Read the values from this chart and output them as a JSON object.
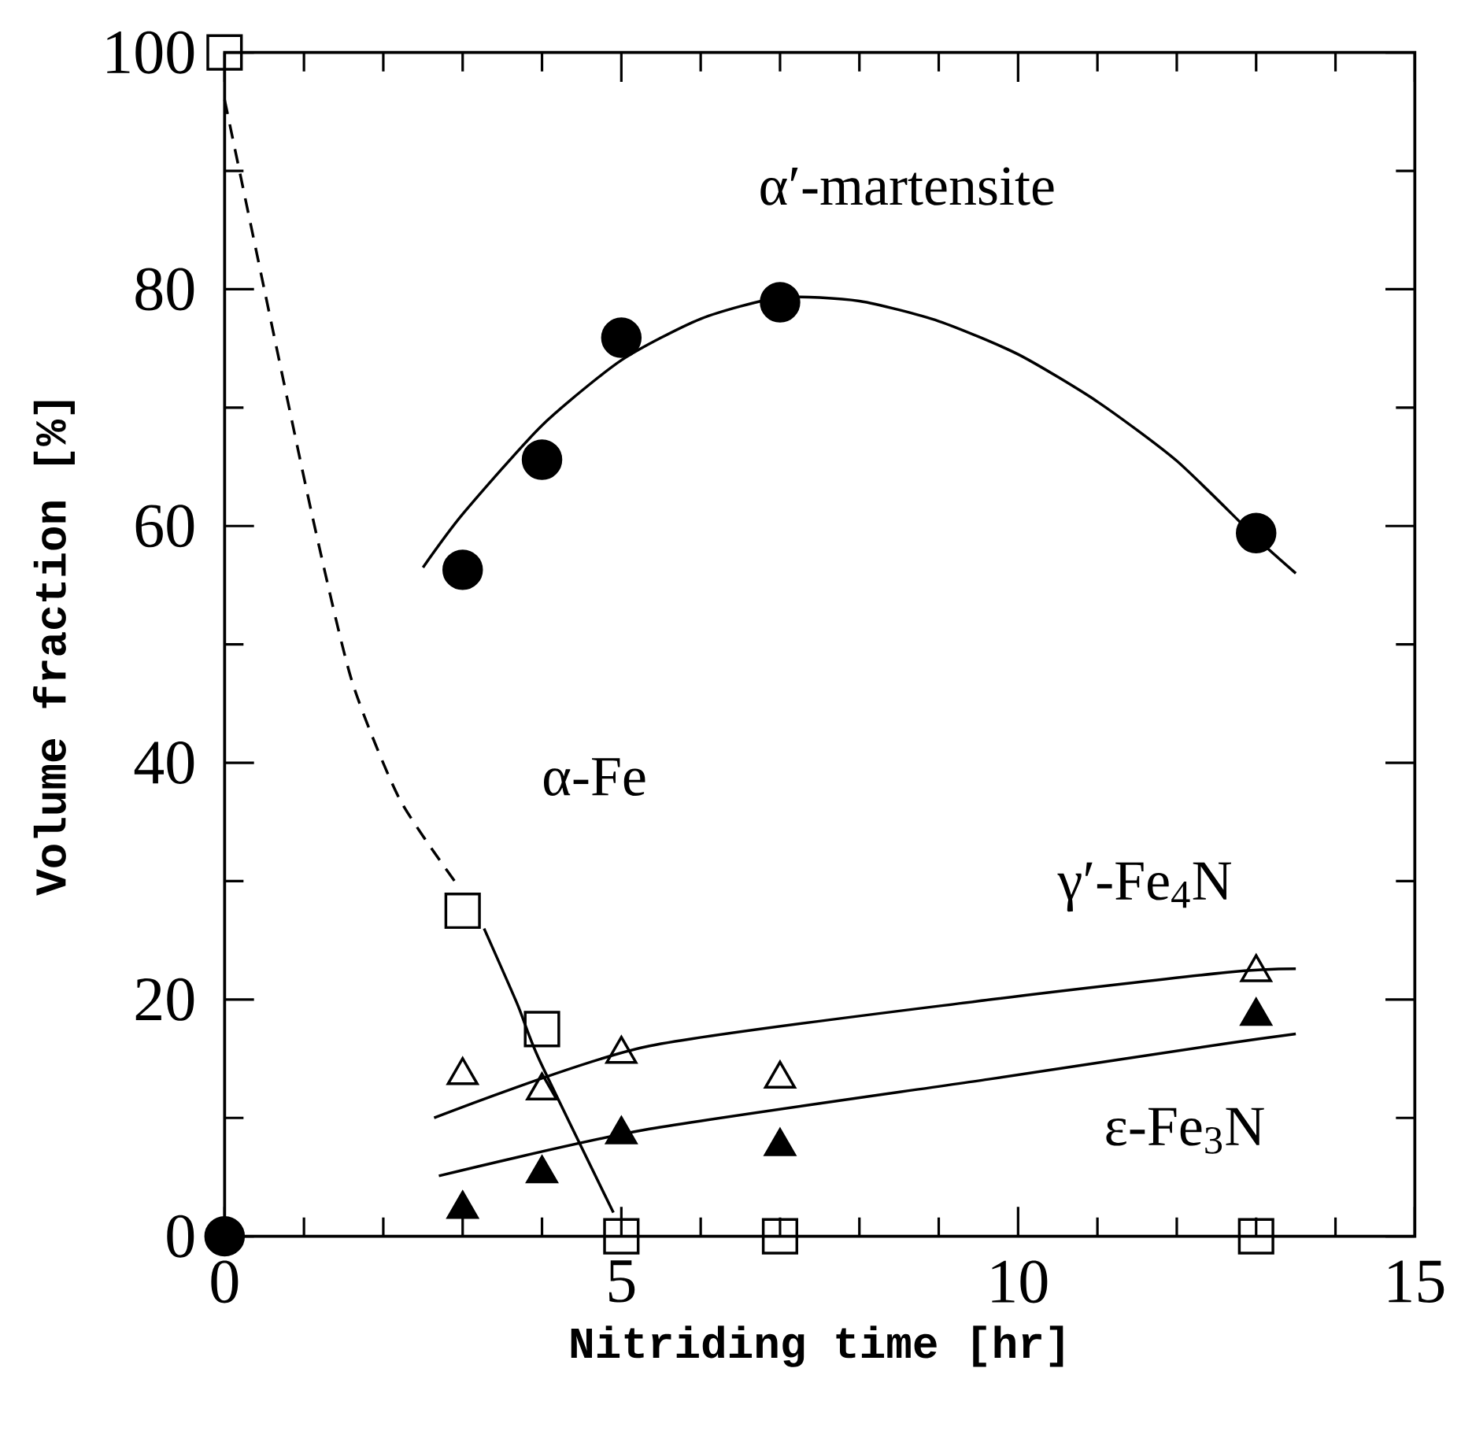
{
  "chart_data": {
    "type": "scatter",
    "xlabel": "Nitriding time [hr]",
    "ylabel": "Volume fraction [%]",
    "xlim": [
      0,
      15
    ],
    "ylim": [
      0,
      100
    ],
    "xticks": [
      0,
      5,
      10,
      15
    ],
    "yticks": [
      0,
      20,
      40,
      60,
      80,
      100
    ],
    "series": [
      {
        "marker": "circle",
        "color": "#000000",
        "x": [
          0,
          3,
          4,
          5,
          7,
          13
        ],
        "values": [
          0,
          56.3,
          65.6,
          75.9,
          78.9,
          59.4
        ]
      },
      {
        "marker": "square",
        "color": "#000000",
        "x": [
          0,
          3,
          4,
          5,
          7,
          13
        ],
        "values": [
          100,
          27.5,
          17.5,
          0,
          0,
          0
        ]
      },
      {
        "marker": "triangle",
        "color": "#000000",
        "x": [
          3,
          4,
          5,
          7,
          13
        ],
        "values": [
          13.6,
          12.3,
          15.4,
          13.3,
          22.3
        ]
      },
      {
        "marker": "triangle-filled",
        "color": "#000000",
        "x": [
          3,
          4,
          5,
          7,
          13
        ],
        "values": [
          2.3,
          5.3,
          8.6,
          7.6,
          18.6
        ]
      },
      {
        "type": "line",
        "line_style": "solid",
        "color": "#000000",
        "x": [
          2.5,
          3,
          4,
          5,
          6,
          7,
          8,
          9,
          10,
          11,
          12,
          13,
          13.5
        ],
        "values": [
          56.5,
          61,
          68.5,
          74,
          77.5,
          79.3,
          79,
          77.3,
          74.5,
          70.5,
          65.5,
          59,
          56
        ]
      },
      {
        "type": "line",
        "line_style": "dashed",
        "color": "#000000",
        "x": [
          0,
          0.5,
          1.1,
          1.6,
          2.2,
          2.9
        ],
        "values": [
          96,
          80,
          61,
          47,
          37,
          30
        ]
      },
      {
        "type": "line",
        "line_style": "solid",
        "color": "#000000",
        "x": [
          3.27,
          3.69,
          3.96,
          4.9
        ],
        "values": [
          26,
          19.6,
          15,
          2
        ]
      },
      {
        "type": "line",
        "line_style": "solid",
        "color": "#000000",
        "x": [
          2.64,
          5.3,
          9.66,
          12.64,
          13.5
        ],
        "values": [
          10,
          16,
          20,
          22.3,
          22.6
        ]
      },
      {
        "type": "line",
        "line_style": "solid",
        "color": "#000000",
        "x": [
          2.7,
          5.3,
          9.66,
          12.64,
          13.5
        ],
        "values": [
          5.1,
          9,
          13.3,
          16.3,
          17.1
        ]
      }
    ],
    "annotations": [
      "α′-martensite",
      "α-Fe",
      "γ′-Fe$_{4}$N",
      "ε-Fe$_{3}$N"
    ]
  }
}
